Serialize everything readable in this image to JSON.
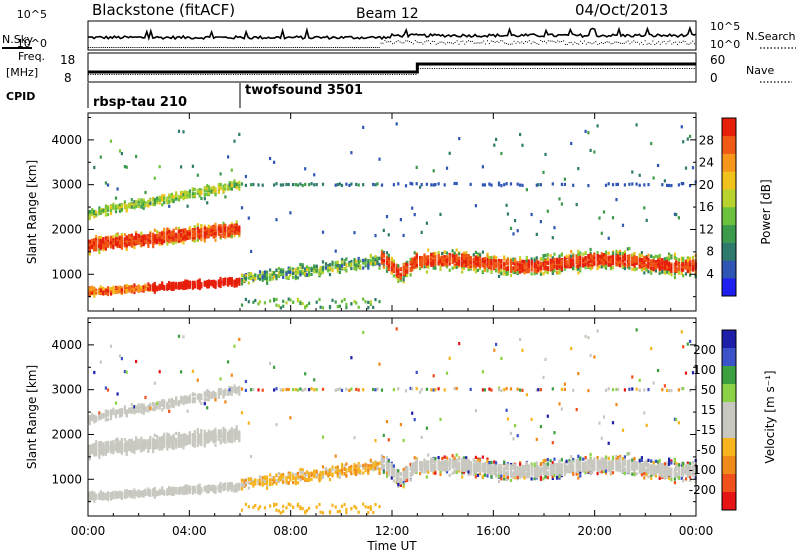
{
  "header": {
    "title": "Blackstone (fitACF)",
    "beam": "Beam 12",
    "date": "04/Oct/2013"
  },
  "status_panels": {
    "nsky_label": "N.Sky",
    "nsearch_label": "N.Search",
    "noise_ticks": [
      "10^5",
      "10^0"
    ],
    "freq_label_line1": "Freq.",
    "freq_label_line2": "[MHz]",
    "freq_ticks": [
      18,
      8
    ],
    "nave_label": "Nave",
    "nave_ticks": [
      60,
      0
    ],
    "cpid_label": "CPID",
    "cpid_segments": [
      {
        "label": "rbsp-tau 210",
        "start_hour": 0
      },
      {
        "label": "twofsound 3501",
        "start_hour": 6
      }
    ]
  },
  "chart_data": [
    {
      "type": "heatmap",
      "name": "power",
      "ylabel": "Slant Range [km]",
      "ylim": [
        180,
        4600
      ],
      "yticks": [
        1000,
        2000,
        3000,
        4000
      ],
      "xlim": [
        0,
        24
      ],
      "colorbar_label": "Power [dB]",
      "colorbar_ticks": [
        4,
        8,
        12,
        16,
        20,
        24,
        28
      ],
      "colorbar_colors": [
        "#1e1ef0",
        "#2f56b4",
        "#2e7b6d",
        "#3c9a4c",
        "#6cc23c",
        "#b8d22e",
        "#f2c21c",
        "#f6961a",
        "#f05a14",
        "#e61e0a"
      ]
    },
    {
      "type": "heatmap",
      "name": "velocity",
      "ylabel": "Slant Range [km]",
      "ylim": [
        180,
        4600
      ],
      "yticks": [
        1000,
        2000,
        3000,
        4000
      ],
      "xlim": [
        0,
        24
      ],
      "xlabel": "Time UT",
      "xticks": [
        "00:00",
        "04:00",
        "08:00",
        "12:00",
        "16:00",
        "20:00",
        "00:00"
      ],
      "colorbar_label": "Velocity [m s⁻¹]",
      "colorbar_ticks": [
        200,
        100,
        50,
        15,
        -15,
        -50,
        -100,
        -200
      ],
      "colorbar_colors": [
        "#1e1ea8",
        "#3c52c8",
        "#3ca040",
        "#8cd246",
        "#c8c8c0",
        "#c8c8c0",
        "#f6b41e",
        "#f08a1a",
        "#f0501a",
        "#e61414"
      ]
    }
  ]
}
